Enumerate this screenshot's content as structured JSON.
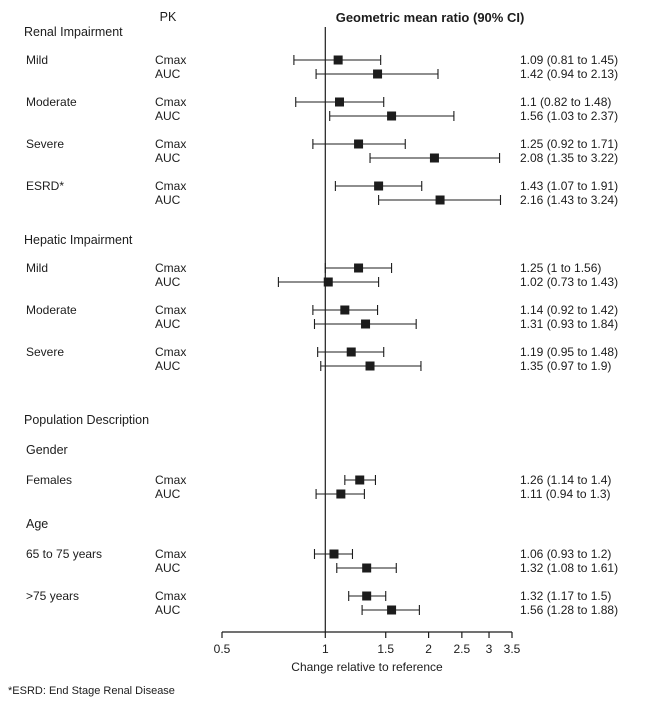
{
  "header": {
    "pk_label": "PK",
    "title": "Geometric mean ratio (90% CI)"
  },
  "axis": {
    "label": "Change relative to reference",
    "ticks": [
      "0.5",
      "1",
      "1.5",
      "2",
      "2.5",
      "3",
      "3.5"
    ],
    "scale": "log",
    "reference_value": 1
  },
  "footnote": "*ESRD: End Stage Renal Disease",
  "chart_data": {
    "type": "forest",
    "title": "Geometric mean ratio (90% CI)",
    "xlabel": "Change relative to reference",
    "x_scale": "log",
    "xlim": [
      0.5,
      3.5
    ],
    "x_ticks": [
      0.5,
      1,
      1.5,
      2,
      2.5,
      3,
      3.5
    ],
    "reference_line": 1,
    "marker": "filled-square",
    "color": "#1c1c1c",
    "sections": [
      {
        "heading": "Renal Impairment",
        "items": [
          {
            "label": "Mild",
            "measures": [
              {
                "pk": "Cmax",
                "mean": 1.09,
                "lo": 0.81,
                "hi": 1.45,
                "text": "1.09 (0.81 to 1.45)"
              },
              {
                "pk": "AUC",
                "mean": 1.42,
                "lo": 0.94,
                "hi": 2.13,
                "text": "1.42 (0.94 to 2.13)"
              }
            ]
          },
          {
            "label": "Moderate",
            "measures": [
              {
                "pk": "Cmax",
                "mean": 1.1,
                "lo": 0.82,
                "hi": 1.48,
                "text": "1.1 (0.82 to 1.48)"
              },
              {
                "pk": "AUC",
                "mean": 1.56,
                "lo": 1.03,
                "hi": 2.37,
                "text": "1.56 (1.03 to 2.37)"
              }
            ]
          },
          {
            "label": "Severe",
            "measures": [
              {
                "pk": "Cmax",
                "mean": 1.25,
                "lo": 0.92,
                "hi": 1.71,
                "text": "1.25 (0.92 to 1.71)"
              },
              {
                "pk": "AUC",
                "mean": 2.08,
                "lo": 1.35,
                "hi": 3.22,
                "text": "2.08 (1.35 to 3.22)"
              }
            ]
          },
          {
            "label": "ESRD*",
            "measures": [
              {
                "pk": "Cmax",
                "mean": 1.43,
                "lo": 1.07,
                "hi": 1.91,
                "text": "1.43 (1.07 to 1.91)"
              },
              {
                "pk": "AUC",
                "mean": 2.16,
                "lo": 1.43,
                "hi": 3.24,
                "text": "2.16 (1.43 to 3.24)"
              }
            ]
          }
        ]
      },
      {
        "heading": "Hepatic Impairment",
        "items": [
          {
            "label": "Mild",
            "measures": [
              {
                "pk": "Cmax",
                "mean": 1.25,
                "lo": 1.0,
                "hi": 1.56,
                "text": "1.25 (1 to 1.56)"
              },
              {
                "pk": "AUC",
                "mean": 1.02,
                "lo": 0.73,
                "hi": 1.43,
                "text": "1.02 (0.73 to 1.43)"
              }
            ]
          },
          {
            "label": "Moderate",
            "measures": [
              {
                "pk": "Cmax",
                "mean": 1.14,
                "lo": 0.92,
                "hi": 1.42,
                "text": "1.14 (0.92 to 1.42)"
              },
              {
                "pk": "AUC",
                "mean": 1.31,
                "lo": 0.93,
                "hi": 1.84,
                "text": "1.31 (0.93 to 1.84)"
              }
            ]
          },
          {
            "label": "Severe",
            "measures": [
              {
                "pk": "Cmax",
                "mean": 1.19,
                "lo": 0.95,
                "hi": 1.48,
                "text": "1.19 (0.95 to 1.48)"
              },
              {
                "pk": "AUC",
                "mean": 1.35,
                "lo": 0.97,
                "hi": 1.9,
                "text": "1.35 (0.97 to 1.9)"
              }
            ]
          }
        ]
      },
      {
        "heading": "Population Description",
        "items": [
          {
            "label": "Gender",
            "subheading": true
          },
          {
            "label": "Females",
            "measures": [
              {
                "pk": "Cmax",
                "mean": 1.26,
                "lo": 1.14,
                "hi": 1.4,
                "text": "1.26 (1.14 to 1.4)"
              },
              {
                "pk": "AUC",
                "mean": 1.11,
                "lo": 0.94,
                "hi": 1.3,
                "text": "1.11 (0.94 to 1.3)"
              }
            ]
          },
          {
            "label": "Age",
            "subheading": true
          },
          {
            "label": "65 to 75 years",
            "measures": [
              {
                "pk": "Cmax",
                "mean": 1.06,
                "lo": 0.93,
                "hi": 1.2,
                "text": "1.06 (0.93 to 1.2)"
              },
              {
                "pk": "AUC",
                "mean": 1.32,
                "lo": 1.08,
                "hi": 1.61,
                "text": "1.32 (1.08 to 1.61)"
              }
            ]
          },
          {
            "label": ">75 years",
            "measures": [
              {
                "pk": "Cmax",
                "mean": 1.32,
                "lo": 1.17,
                "hi": 1.5,
                "text": "1.32 (1.17 to 1.5)"
              },
              {
                "pk": "AUC",
                "mean": 1.56,
                "lo": 1.28,
                "hi": 1.88,
                "text": "1.56 (1.28 to 1.88)"
              }
            ]
          }
        ]
      }
    ]
  }
}
